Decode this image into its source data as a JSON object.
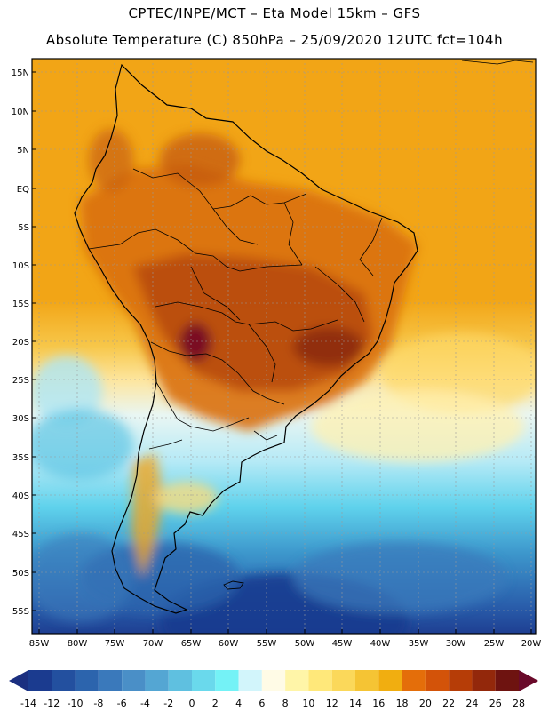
{
  "header": {
    "line1": "CPTEC/INPE/MCT –  Eta Model 15km – GFS",
    "line2": "Absolute Temperature (C) 850hPa – 25/09/2020 12UTC fct=104h"
  },
  "map": {
    "lat_labels": [
      "15N",
      "10N",
      "5N",
      "EQ",
      "5S",
      "10S",
      "15S",
      "20S",
      "25S",
      "30S",
      "35S",
      "40S",
      "45S",
      "50S",
      "55S"
    ],
    "lon_labels": [
      "85W",
      "80W",
      "75W",
      "70W",
      "65W",
      "60W",
      "55W",
      "50W",
      "45W",
      "40W",
      "35W",
      "30W",
      "25W",
      "20W"
    ]
  },
  "colorbar": {
    "labels": [
      "-14",
      "-12",
      "-10",
      "-8",
      "-6",
      "-4",
      "-2",
      "0",
      "2",
      "4",
      "6",
      "8",
      "10",
      "12",
      "14",
      "16",
      "18",
      "20",
      "22",
      "24",
      "26",
      "28"
    ],
    "colors": [
      "#1b3b8f",
      "#23509f",
      "#2c64ad",
      "#3a79bb",
      "#4a8fc7",
      "#54a6d3",
      "#5fc0e0",
      "#6ad9ec",
      "#74f2f6",
      "#d2f5fb",
      "#fffbe6",
      "#fff5a8",
      "#ffe87a",
      "#fbd85a",
      "#f5c434",
      "#f1ae10",
      "#e46e0a",
      "#d35309",
      "#b63d07",
      "#93280b",
      "#6e1310"
    ],
    "low_color": "#1b2f80",
    "high_color": "#6a0a2a"
  }
}
